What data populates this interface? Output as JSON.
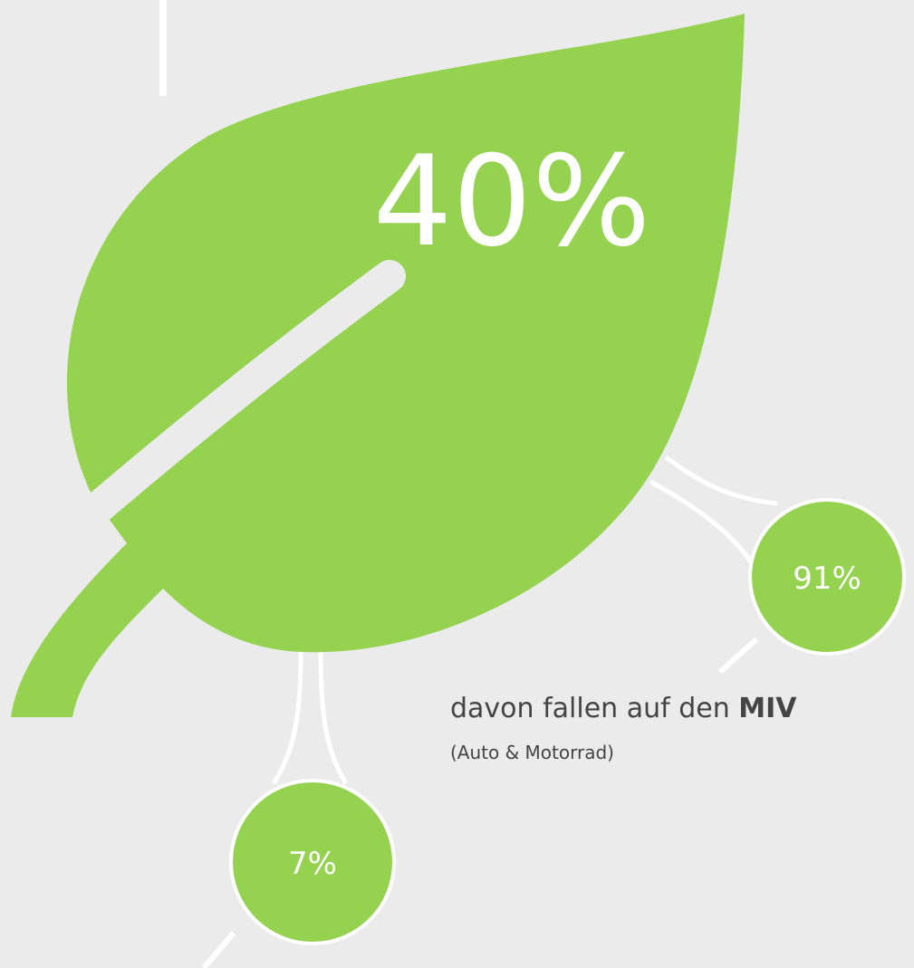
{
  "leaf": {
    "value_text": "40%"
  },
  "bubbles": [
    {
      "value_text": "91%"
    },
    {
      "value_text": "7%"
    }
  ],
  "caption": {
    "text": "davon fallen auf den",
    "highlight": "MIV",
    "note": "(Auto & Motorrad)"
  }
}
